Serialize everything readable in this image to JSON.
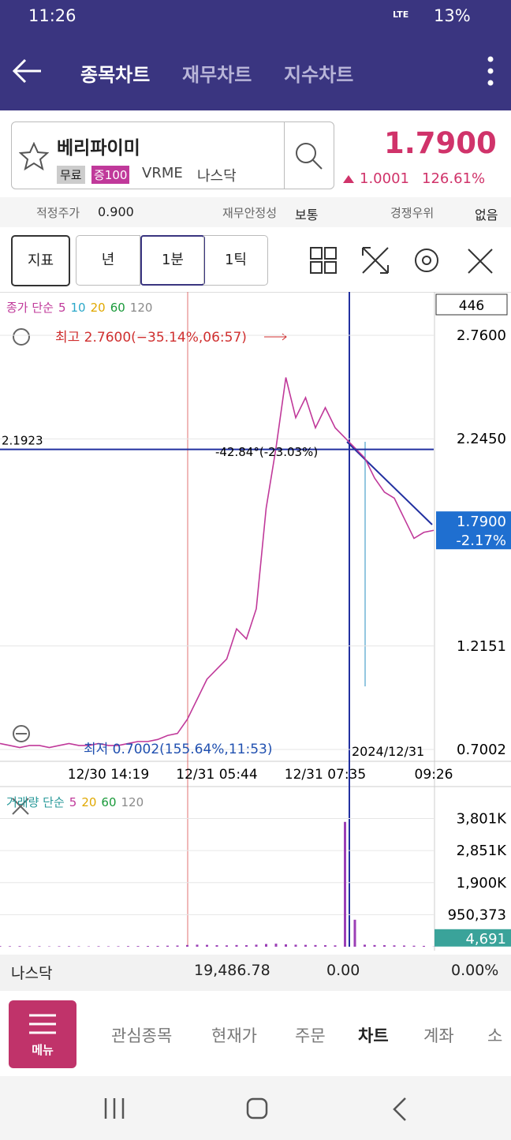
{
  "status_bar": {
    "time": "11:26",
    "network": "LTE",
    "battery": "13%"
  },
  "header": {
    "tabs": [
      "종목차트",
      "재무차트",
      "지수차트"
    ]
  },
  "stock": {
    "name": "베리파이미",
    "badges": [
      "무료",
      "증100"
    ],
    "ticker": "VRME",
    "market": "나스닥",
    "price": "1.7900",
    "change": "1.0001",
    "change_pct": "126.61%"
  },
  "info": [
    {
      "label": "적정주가",
      "value": "0.900"
    },
    {
      "label": "재무안정성",
      "value": "보통"
    },
    {
      "label": "경쟁우위",
      "value": "없음"
    }
  ],
  "toolbar": [
    "지표",
    "년",
    "1분",
    "1틱"
  ],
  "chart_data": [
    {
      "type": "line",
      "legend_title": "종가 단순",
      "ma_periods": [
        {
          "label": "5",
          "color": "#c0399a"
        },
        {
          "label": "10",
          "color": "#2aa7c9"
        },
        {
          "label": "20",
          "color": "#e0a800"
        },
        {
          "label": "60",
          "color": "#1a9a3a"
        },
        {
          "label": "120",
          "color": "#8a8a8a"
        }
      ],
      "count": "446",
      "high_label": "최고 2.7600(−35.14%,06:57)",
      "low_label": "최저 0.7002(155.64%,11:53)",
      "crosshair": 2.1923,
      "trend_label": "-42.84°(-23.03%)",
      "date_label": "2024/12/31",
      "categories": [
        null,
        null,
        null,
        null,
        null,
        null,
        null,
        null,
        null,
        null,
        null,
        "12/30 14:19",
        null,
        null,
        null,
        null,
        null,
        null,
        null,
        null,
        null,
        null,
        "12/31 05:44",
        null,
        null,
        null,
        null,
        null,
        null,
        null,
        null,
        null,
        null,
        "12/31 07:35",
        null,
        null,
        null,
        null,
        null,
        null,
        null,
        null,
        null,
        null,
        "09:26"
      ],
      "values": [
        0.73,
        0.72,
        0.71,
        0.72,
        0.72,
        0.71,
        0.72,
        0.73,
        0.72,
        0.72,
        0.73,
        0.72,
        0.72,
        0.73,
        0.74,
        0.74,
        0.75,
        0.77,
        0.78,
        0.85,
        0.95,
        1.05,
        1.1,
        1.15,
        1.3,
        1.25,
        1.4,
        1.9,
        2.2,
        2.55,
        2.35,
        2.45,
        2.3,
        2.4,
        2.3,
        2.25,
        2.2,
        2.15,
        2.05,
        1.98,
        1.95,
        1.85,
        1.75,
        1.78,
        1.79
      ],
      "color": "#c0399a",
      "ylim": [
        0.6414,
        2.9678
      ],
      "yticks": [
        0.7002,
        1.2151,
        {
          "value": 2.245,
          "label": "2.2450"
        },
        {
          "value": 2.76,
          "label": "2.7600"
        }
      ],
      "current_tag": {
        "value": 1.79,
        "label": "1.7900"
      },
      "current_change": "-2.17%"
    },
    {
      "type": "bar",
      "legend_title": "거래량 단순",
      "ma_periods": [
        {
          "label": "5",
          "color": "#c0399a"
        },
        {
          "label": "20",
          "color": "#e0a800"
        },
        {
          "label": "60",
          "color": "#1a9a3a"
        },
        {
          "label": "120",
          "color": "#8a8a8a"
        }
      ],
      "values": [
        20000,
        15000,
        18000,
        12000,
        15000,
        10000,
        14000,
        16000,
        12000,
        10000,
        15000,
        12000,
        14000,
        18000,
        20000,
        22000,
        25000,
        30000,
        35000,
        50000,
        60000,
        55000,
        45000,
        40000,
        50000,
        45000,
        60000,
        80000,
        90000,
        70000,
        60000,
        55000,
        50000,
        45000,
        40000,
        3700000,
        800000,
        60000,
        50000,
        45000,
        40000,
        35000,
        30000,
        25000,
        4691
      ],
      "color": "#9b3fb6",
      "ylim": [
        0,
        4560000
      ],
      "yticks": [
        {
          "value": 950373,
          "label": "950,373"
        },
        {
          "value": 1900000,
          "label": "1,900K"
        },
        {
          "value": 2851000,
          "label": "2,851K"
        },
        {
          "value": 3801000,
          "label": "3,801K"
        }
      ],
      "current_tag": {
        "value": 4691,
        "label": "4,691"
      }
    }
  ],
  "index_bar": {
    "name": "나스닥",
    "value": "19,486.78",
    "change": "0.00",
    "change_pct": "0.00%"
  },
  "bottom_nav": {
    "menu": "메뉴",
    "items": [
      "관심종목",
      "현재가",
      "주문",
      "차트",
      "계좌",
      "소"
    ]
  }
}
